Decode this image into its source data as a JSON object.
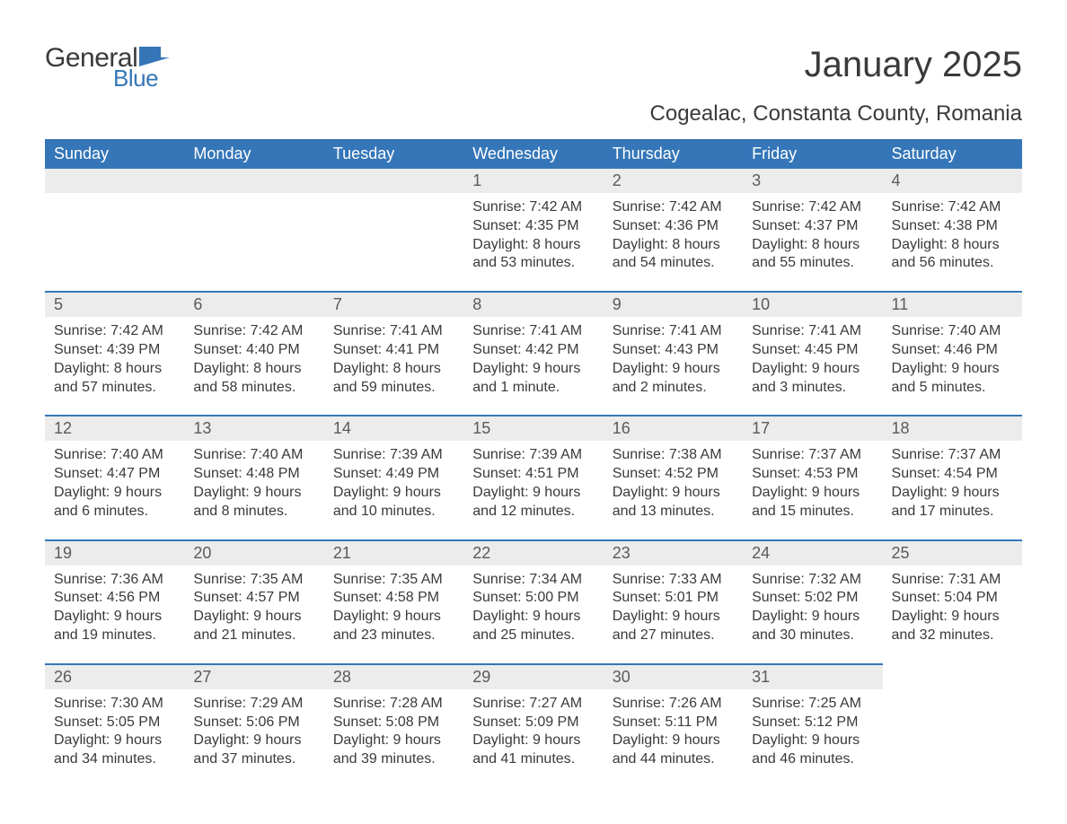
{
  "logo": {
    "text_general": "General",
    "text_blue": "Blue"
  },
  "title": {
    "month": "January 2025",
    "location": "Cogealac, Constanta County, Romania"
  },
  "colors": {
    "brand_blue": "#3576b8",
    "header_row_bg": "#3576b8",
    "header_row_text": "#ffffff",
    "day_num_bg": "#ececec",
    "day_num_border": "#3576b8",
    "body_text": "#3a3a3a",
    "background": "#ffffff"
  },
  "typography": {
    "title_fontsize": 40,
    "location_fontsize": 24,
    "header_fontsize": 18,
    "daynum_fontsize": 18,
    "body_fontsize": 16
  },
  "layout": {
    "columns": 7,
    "rows": 5
  },
  "weekdays": [
    "Sunday",
    "Monday",
    "Tuesday",
    "Wednesday",
    "Thursday",
    "Friday",
    "Saturday"
  ],
  "weeks": [
    [
      null,
      null,
      null,
      {
        "n": "1",
        "sunrise": "Sunrise: 7:42 AM",
        "sunset": "Sunset: 4:35 PM",
        "d1": "Daylight: 8 hours",
        "d2": "and 53 minutes."
      },
      {
        "n": "2",
        "sunrise": "Sunrise: 7:42 AM",
        "sunset": "Sunset: 4:36 PM",
        "d1": "Daylight: 8 hours",
        "d2": "and 54 minutes."
      },
      {
        "n": "3",
        "sunrise": "Sunrise: 7:42 AM",
        "sunset": "Sunset: 4:37 PM",
        "d1": "Daylight: 8 hours",
        "d2": "and 55 minutes."
      },
      {
        "n": "4",
        "sunrise": "Sunrise: 7:42 AM",
        "sunset": "Sunset: 4:38 PM",
        "d1": "Daylight: 8 hours",
        "d2": "and 56 minutes."
      }
    ],
    [
      {
        "n": "5",
        "sunrise": "Sunrise: 7:42 AM",
        "sunset": "Sunset: 4:39 PM",
        "d1": "Daylight: 8 hours",
        "d2": "and 57 minutes."
      },
      {
        "n": "6",
        "sunrise": "Sunrise: 7:42 AM",
        "sunset": "Sunset: 4:40 PM",
        "d1": "Daylight: 8 hours",
        "d2": "and 58 minutes."
      },
      {
        "n": "7",
        "sunrise": "Sunrise: 7:41 AM",
        "sunset": "Sunset: 4:41 PM",
        "d1": "Daylight: 8 hours",
        "d2": "and 59 minutes."
      },
      {
        "n": "8",
        "sunrise": "Sunrise: 7:41 AM",
        "sunset": "Sunset: 4:42 PM",
        "d1": "Daylight: 9 hours",
        "d2": "and 1 minute."
      },
      {
        "n": "9",
        "sunrise": "Sunrise: 7:41 AM",
        "sunset": "Sunset: 4:43 PM",
        "d1": "Daylight: 9 hours",
        "d2": "and 2 minutes."
      },
      {
        "n": "10",
        "sunrise": "Sunrise: 7:41 AM",
        "sunset": "Sunset: 4:45 PM",
        "d1": "Daylight: 9 hours",
        "d2": "and 3 minutes."
      },
      {
        "n": "11",
        "sunrise": "Sunrise: 7:40 AM",
        "sunset": "Sunset: 4:46 PM",
        "d1": "Daylight: 9 hours",
        "d2": "and 5 minutes."
      }
    ],
    [
      {
        "n": "12",
        "sunrise": "Sunrise: 7:40 AM",
        "sunset": "Sunset: 4:47 PM",
        "d1": "Daylight: 9 hours",
        "d2": "and 6 minutes."
      },
      {
        "n": "13",
        "sunrise": "Sunrise: 7:40 AM",
        "sunset": "Sunset: 4:48 PM",
        "d1": "Daylight: 9 hours",
        "d2": "and 8 minutes."
      },
      {
        "n": "14",
        "sunrise": "Sunrise: 7:39 AM",
        "sunset": "Sunset: 4:49 PM",
        "d1": "Daylight: 9 hours",
        "d2": "and 10 minutes."
      },
      {
        "n": "15",
        "sunrise": "Sunrise: 7:39 AM",
        "sunset": "Sunset: 4:51 PM",
        "d1": "Daylight: 9 hours",
        "d2": "and 12 minutes."
      },
      {
        "n": "16",
        "sunrise": "Sunrise: 7:38 AM",
        "sunset": "Sunset: 4:52 PM",
        "d1": "Daylight: 9 hours",
        "d2": "and 13 minutes."
      },
      {
        "n": "17",
        "sunrise": "Sunrise: 7:37 AM",
        "sunset": "Sunset: 4:53 PM",
        "d1": "Daylight: 9 hours",
        "d2": "and 15 minutes."
      },
      {
        "n": "18",
        "sunrise": "Sunrise: 7:37 AM",
        "sunset": "Sunset: 4:54 PM",
        "d1": "Daylight: 9 hours",
        "d2": "and 17 minutes."
      }
    ],
    [
      {
        "n": "19",
        "sunrise": "Sunrise: 7:36 AM",
        "sunset": "Sunset: 4:56 PM",
        "d1": "Daylight: 9 hours",
        "d2": "and 19 minutes."
      },
      {
        "n": "20",
        "sunrise": "Sunrise: 7:35 AM",
        "sunset": "Sunset: 4:57 PM",
        "d1": "Daylight: 9 hours",
        "d2": "and 21 minutes."
      },
      {
        "n": "21",
        "sunrise": "Sunrise: 7:35 AM",
        "sunset": "Sunset: 4:58 PM",
        "d1": "Daylight: 9 hours",
        "d2": "and 23 minutes."
      },
      {
        "n": "22",
        "sunrise": "Sunrise: 7:34 AM",
        "sunset": "Sunset: 5:00 PM",
        "d1": "Daylight: 9 hours",
        "d2": "and 25 minutes."
      },
      {
        "n": "23",
        "sunrise": "Sunrise: 7:33 AM",
        "sunset": "Sunset: 5:01 PM",
        "d1": "Daylight: 9 hours",
        "d2": "and 27 minutes."
      },
      {
        "n": "24",
        "sunrise": "Sunrise: 7:32 AM",
        "sunset": "Sunset: 5:02 PM",
        "d1": "Daylight: 9 hours",
        "d2": "and 30 minutes."
      },
      {
        "n": "25",
        "sunrise": "Sunrise: 7:31 AM",
        "sunset": "Sunset: 5:04 PM",
        "d1": "Daylight: 9 hours",
        "d2": "and 32 minutes."
      }
    ],
    [
      {
        "n": "26",
        "sunrise": "Sunrise: 7:30 AM",
        "sunset": "Sunset: 5:05 PM",
        "d1": "Daylight: 9 hours",
        "d2": "and 34 minutes."
      },
      {
        "n": "27",
        "sunrise": "Sunrise: 7:29 AM",
        "sunset": "Sunset: 5:06 PM",
        "d1": "Daylight: 9 hours",
        "d2": "and 37 minutes."
      },
      {
        "n": "28",
        "sunrise": "Sunrise: 7:28 AM",
        "sunset": "Sunset: 5:08 PM",
        "d1": "Daylight: 9 hours",
        "d2": "and 39 minutes."
      },
      {
        "n": "29",
        "sunrise": "Sunrise: 7:27 AM",
        "sunset": "Sunset: 5:09 PM",
        "d1": "Daylight: 9 hours",
        "d2": "and 41 minutes."
      },
      {
        "n": "30",
        "sunrise": "Sunrise: 7:26 AM",
        "sunset": "Sunset: 5:11 PM",
        "d1": "Daylight: 9 hours",
        "d2": "and 44 minutes."
      },
      {
        "n": "31",
        "sunrise": "Sunrise: 7:25 AM",
        "sunset": "Sunset: 5:12 PM",
        "d1": "Daylight: 9 hours",
        "d2": "and 46 minutes."
      },
      null
    ]
  ]
}
